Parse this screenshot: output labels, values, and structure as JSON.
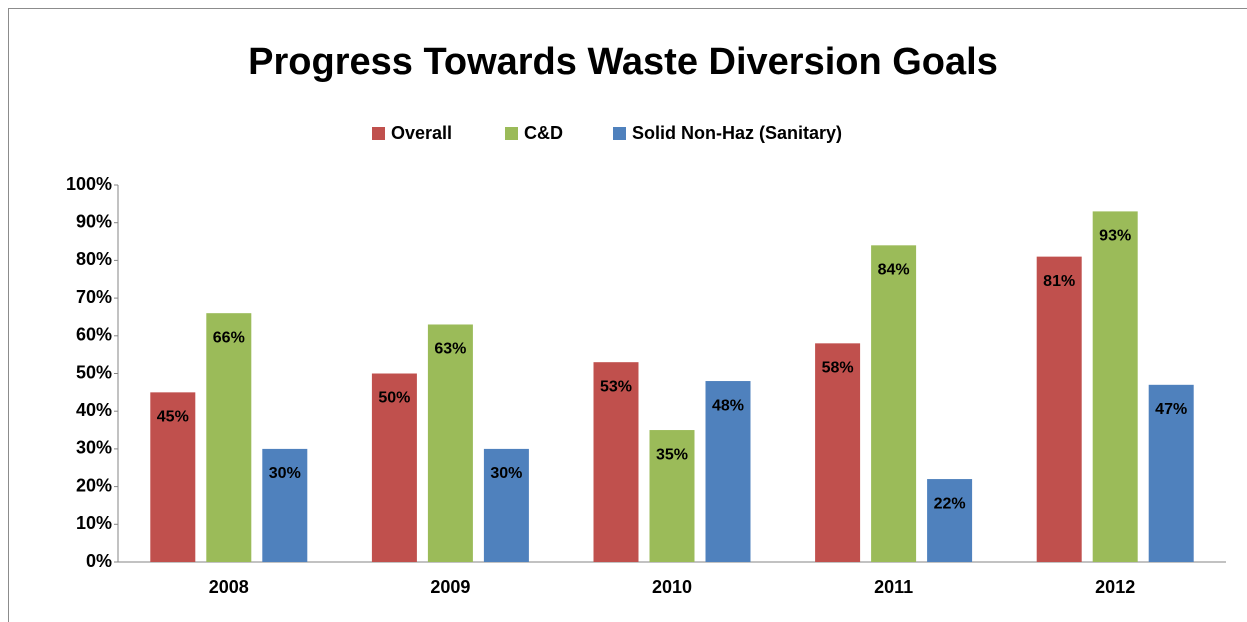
{
  "chart_data": {
    "type": "bar",
    "title": "Progress Towards Waste Diversion Goals",
    "categories": [
      "2008",
      "2009",
      "2010",
      "2011",
      "2012"
    ],
    "series": [
      {
        "name": "Overall",
        "color": "#c0504d",
        "values": [
          45,
          50,
          53,
          58,
          81
        ],
        "value_labels": [
          "45%",
          "50%",
          "53%",
          "58%",
          "81%"
        ]
      },
      {
        "name": "C&D",
        "color": "#9bbb59",
        "values": [
          66,
          63,
          35,
          84,
          93
        ],
        "value_labels": [
          "66%",
          "63%",
          "35%",
          "84%",
          "93%"
        ]
      },
      {
        "name": "Solid Non-Haz (Sanitary)",
        "color": "#4f81bd",
        "values": [
          30,
          30,
          48,
          22,
          47
        ],
        "value_labels": [
          "30%",
          "30%",
          "48%",
          "22%",
          "47%"
        ]
      }
    ],
    "ylim": [
      0,
      100
    ],
    "yticks": [
      {
        "value": 0,
        "label": "0%"
      },
      {
        "value": 10,
        "label": "10%"
      },
      {
        "value": 20,
        "label": "20%"
      },
      {
        "value": 30,
        "label": "30%"
      },
      {
        "value": 40,
        "label": "40%"
      },
      {
        "value": 50,
        "label": "50%"
      },
      {
        "value": 60,
        "label": "60%"
      },
      {
        "value": 70,
        "label": "70%"
      },
      {
        "value": 80,
        "label": "80%"
      },
      {
        "value": 90,
        "label": "90%"
      },
      {
        "value": 100,
        "label": "100%"
      }
    ],
    "grid": false,
    "legend": "top"
  }
}
